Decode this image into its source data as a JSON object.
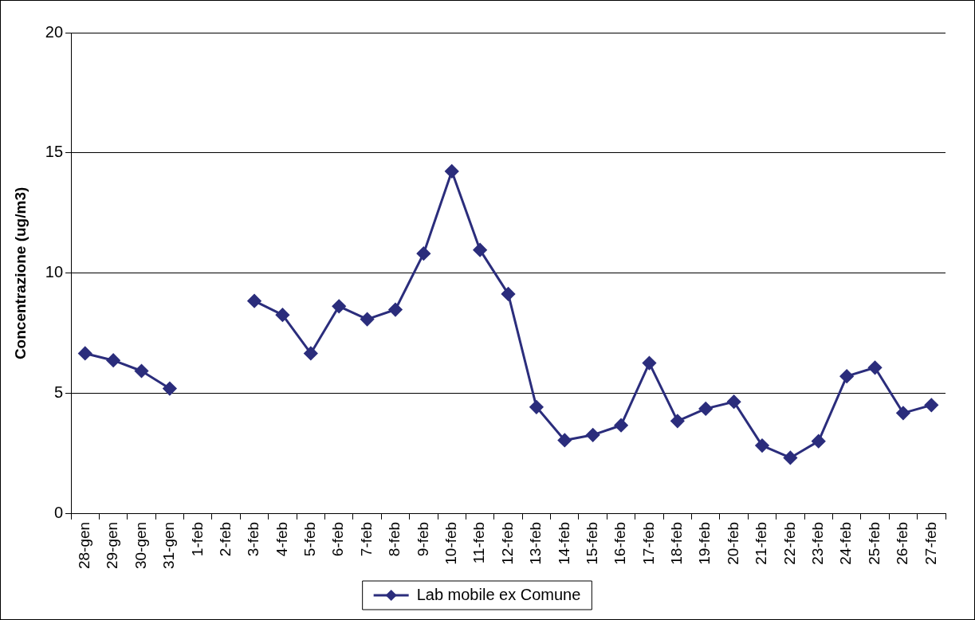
{
  "chart_data": {
    "type": "line",
    "ylabel": "Concentrazione (ug/m3)",
    "categories": [
      "28-gen",
      "29-gen",
      "30-gen",
      "31-gen",
      "1-feb",
      "2-feb",
      "3-feb",
      "4-feb",
      "5-feb",
      "6-feb",
      "7-feb",
      "8-feb",
      "9-feb",
      "10-feb",
      "11-feb",
      "12-feb",
      "13-feb",
      "14-feb",
      "15-feb",
      "16-feb",
      "17-feb",
      "18-feb",
      "19-feb",
      "20-feb",
      "21-feb",
      "22-feb",
      "23-feb",
      "24-feb",
      "25-feb",
      "26-feb",
      "27-feb"
    ],
    "series": [
      {
        "name": "Lab mobile ex Comune",
        "color": "#2b2d7c",
        "values": [
          6.67,
          6.38,
          5.94,
          5.21,
          null,
          null,
          8.85,
          8.27,
          6.67,
          8.63,
          8.09,
          8.49,
          10.82,
          14.24,
          10.97,
          9.14,
          4.44,
          3.06,
          3.28,
          3.68,
          6.27,
          3.86,
          4.37,
          4.66,
          2.84,
          2.33,
          3.02,
          5.72,
          6.08,
          4.19,
          4.52
        ]
      }
    ],
    "ylim": [
      0,
      20
    ],
    "yticks": [
      0,
      5,
      10,
      15,
      20
    ],
    "grid": "y",
    "legend": "bottom",
    "marker": "diamond",
    "line_style": "solid"
  }
}
